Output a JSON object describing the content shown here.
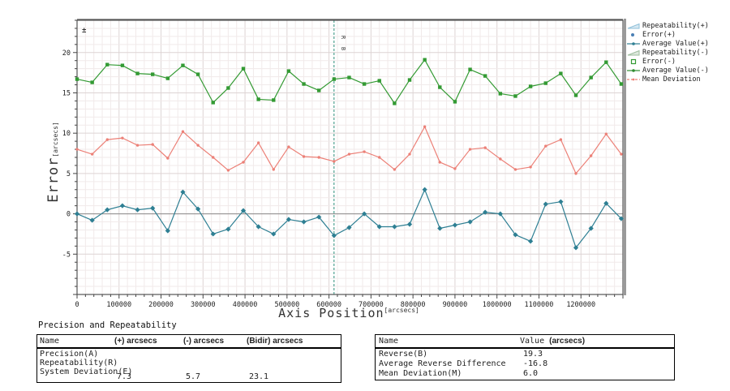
{
  "chart_data": {
    "type": "line",
    "xlabel": "Axis Position",
    "xlabel_unit": "[arcsecs]",
    "ylabel": "Error",
    "ylabel_unit": "[arcsecs]",
    "xlim": [
      0,
      1300000
    ],
    "ylim": [
      -10,
      24
    ],
    "x_major_ticks": [
      0,
      100000,
      200000,
      300000,
      400000,
      500000,
      600000,
      700000,
      800000,
      900000,
      1000000,
      1100000,
      1200000
    ],
    "x_minor_step": 20000,
    "y_major_ticks": [
      -5,
      0,
      5,
      10,
      15,
      20
    ],
    "y_minor_step": 1,
    "x_start": 0,
    "x_step": 36000,
    "grid": true,
    "zero_line": true,
    "legend_position": "right-outside",
    "corner_marker": "±",
    "reference_line": {
      "x": 612000,
      "labels": [
        "R",
        "B"
      ],
      "color": "#2f8f7c"
    },
    "series": [
      {
        "name": "Average Value(-)",
        "color": "#339a33",
        "marker": "square",
        "values": [
          16.7,
          16.3,
          18.5,
          18.4,
          17.4,
          17.3,
          16.8,
          18.4,
          17.3,
          13.8,
          15.6,
          18.0,
          14.2,
          14.1,
          17.7,
          16.1,
          15.3,
          16.7,
          16.9,
          16.1,
          16.5,
          13.7,
          16.6,
          19.1,
          15.7,
          13.9,
          17.9,
          17.1,
          14.9,
          14.6,
          15.8,
          16.2,
          17.4,
          14.7,
          16.9,
          18.8,
          16.1
        ]
      },
      {
        "name": "Mean Deviation",
        "color": "#ec8077",
        "marker": "dot",
        "values": [
          8.0,
          7.4,
          9.2,
          9.4,
          8.5,
          8.6,
          6.9,
          10.2,
          8.5,
          7.0,
          5.4,
          6.4,
          8.8,
          5.5,
          8.3,
          7.1,
          7.0,
          6.5,
          7.4,
          7.7,
          7.0,
          5.5,
          7.4,
          10.8,
          6.4,
          5.6,
          8.0,
          8.2,
          6.8,
          5.5,
          5.8,
          8.4,
          9.2,
          5.0,
          7.2,
          9.9,
          7.4
        ]
      },
      {
        "name": "Average Value(+)",
        "color": "#2e7f93",
        "marker": "diamond",
        "values": [
          0.0,
          -0.8,
          0.5,
          1.0,
          0.5,
          0.7,
          -2.1,
          2.7,
          0.6,
          -2.5,
          -1.9,
          0.4,
          -1.6,
          -2.5,
          -0.7,
          -1.0,
          -0.4,
          -2.7,
          -1.7,
          0.0,
          -1.6,
          -1.6,
          -1.3,
          3.0,
          -1.8,
          -1.4,
          -1.0,
          0.2,
          0.0,
          -2.6,
          -3.4,
          1.2,
          1.5,
          -4.2,
          -1.8,
          1.3,
          -0.6
        ]
      }
    ]
  },
  "legend": {
    "items": [
      {
        "label": "Repeatability(+)",
        "glyph": "triangle",
        "color": "#8fc0da"
      },
      {
        "label": "Error(+)",
        "glyph": "dot",
        "color": "#4a7fb5"
      },
      {
        "label": "Average Value(+)",
        "glyph": "line-dot",
        "color": "#2e7f93"
      },
      {
        "label": "Repeatability(-)",
        "glyph": "triangle",
        "color": "#9dbd9d"
      },
      {
        "label": "Error(-)",
        "glyph": "square",
        "color": "#339a33"
      },
      {
        "label": "Average Value(-)",
        "glyph": "line-dot",
        "color": "#2e8b2e"
      },
      {
        "label": "Mean Deviation",
        "glyph": "dash-dot",
        "color": "#ec8077"
      }
    ]
  },
  "section_title": "Precision and Repeatability",
  "tables": {
    "left": {
      "headers": {
        "name": "Name",
        "plus": "(+) arcsecs",
        "minus": "(-) arcsecs",
        "bidir": "(Bidir) arcsecs"
      },
      "row_names": [
        "Precision(A)",
        "Repeatability(R)",
        "System Deviation(E)"
      ],
      "values": {
        "plus": "7.3",
        "minus": "5.7",
        "bidir": "23.1"
      }
    },
    "right": {
      "headers": {
        "name": "Name",
        "value_label": "Value",
        "value_unit": "(arcsecs)"
      },
      "rows": [
        {
          "name": "Reverse(B)",
          "value": "19.3"
        },
        {
          "name": "Average Reverse Difference",
          "value": "-16.8"
        },
        {
          "name": "Mean Deviation(M)",
          "value": "6.0"
        }
      ]
    }
  }
}
